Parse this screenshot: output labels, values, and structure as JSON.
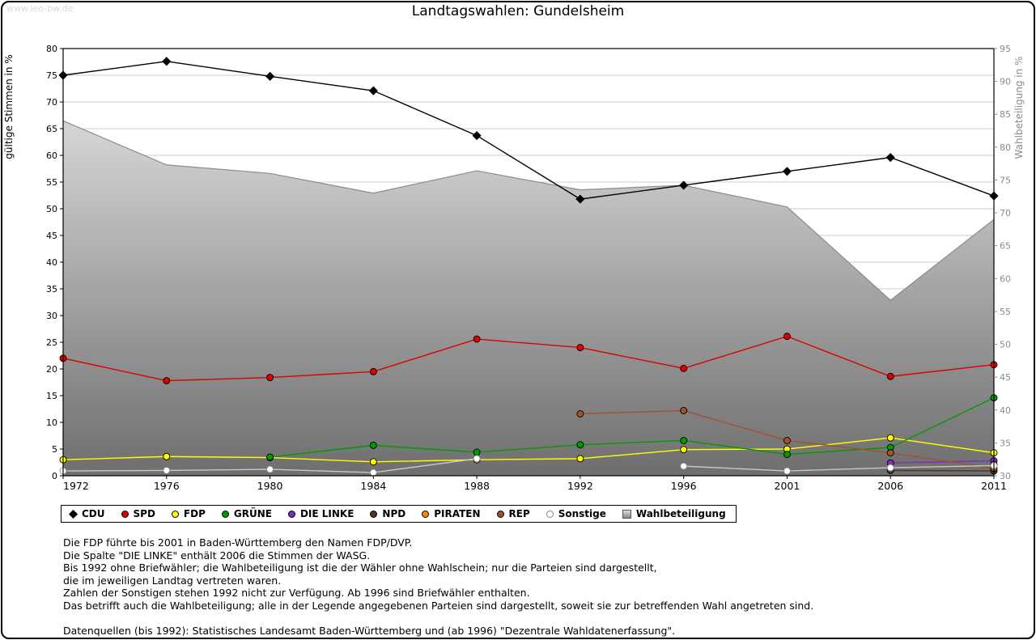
{
  "page": {
    "watermark": "www.leo-bw.de",
    "title": "Landtagswahlen: Gundelsheim"
  },
  "chart_data": {
    "type": "line",
    "title": "Landtagswahlen: Gundelsheim",
    "categories": [
      "1972",
      "1976",
      "1980",
      "1984",
      "1988",
      "1992",
      "1996",
      "2001",
      "2006",
      "2011"
    ],
    "left_axis": {
      "label": "gültige Stimmen in %",
      "min": 0,
      "max": 80,
      "step": 5
    },
    "right_axis": {
      "label": "Wahlbeteiligung in %",
      "min": 30,
      "max": 95,
      "step": 5
    },
    "grid": true,
    "legend_position": "bottom",
    "series": [
      {
        "name": "CDU",
        "color": "#000000",
        "marker": "diamond",
        "values": [
          75.0,
          77.6,
          74.8,
          72.1,
          63.7,
          51.8,
          54.4,
          57.0,
          59.6,
          52.4
        ]
      },
      {
        "name": "SPD",
        "color": "#dd0000",
        "marker": "circle",
        "values": [
          22.0,
          17.8,
          18.4,
          19.5,
          25.6,
          24.0,
          20.1,
          26.1,
          18.6,
          20.8
        ]
      },
      {
        "name": "FDP",
        "color": "#ffff00",
        "marker": "circle",
        "values": [
          3.0,
          3.6,
          3.4,
          2.6,
          3.0,
          3.2,
          4.9,
          5.0,
          7.1,
          4.3
        ]
      },
      {
        "name": "GRÜNE",
        "color": "#009900",
        "marker": "circle",
        "values": [
          null,
          null,
          3.5,
          5.7,
          4.4,
          5.8,
          6.6,
          4.0,
          5.3,
          14.6
        ]
      },
      {
        "name": "DIE LINKE",
        "color": "#7b2fbe",
        "marker": "circle",
        "values": [
          null,
          null,
          null,
          null,
          null,
          null,
          null,
          null,
          2.4,
          2.8
        ]
      },
      {
        "name": "NPD",
        "color": "#52361a",
        "marker": "circle",
        "values": [
          null,
          null,
          null,
          null,
          null,
          null,
          null,
          null,
          1.0,
          0.9
        ]
      },
      {
        "name": "PIRATEN",
        "color": "#ff8800",
        "marker": "circle",
        "values": [
          null,
          null,
          null,
          null,
          null,
          null,
          null,
          null,
          null,
          2.1
        ]
      },
      {
        "name": "REP",
        "color": "#a0522d",
        "marker": "circle",
        "values": [
          null,
          null,
          null,
          null,
          null,
          11.6,
          12.2,
          6.6,
          4.3,
          1.4
        ]
      },
      {
        "name": "Sonstige",
        "color": "#c8c8c8",
        "marker": "circle",
        "marker_fill": "#ffffff",
        "marker_stroke": "#888888",
        "values": [
          0.9,
          1.0,
          1.2,
          0.6,
          3.2,
          null,
          1.8,
          0.9,
          1.5,
          1.9
        ]
      }
    ],
    "turnout": {
      "name": "Wahlbeteiligung",
      "axis": "right",
      "style": "area",
      "fill_top": "#d6d6d6",
      "fill_bottom": "#6e6e6e",
      "edge_color": "#8c8c8c",
      "values": [
        84.0,
        77.3,
        76.0,
        73.0,
        76.4,
        73.5,
        74.2,
        70.9,
        56.7,
        69.0
      ]
    }
  },
  "footnotes": {
    "lines": [
      "Die FDP führte bis 2001 in Baden-Württemberg den Namen FDP/DVP.",
      "Die Spalte \"DIE LINKE\" enthält 2006 die Stimmen der WASG.",
      "Bis 1992 ohne Briefwähler; die Wahlbeteiligung ist die der Wähler ohne Wahlschein; nur die Parteien sind dargestellt,",
      "die im jeweiligen Landtag vertreten waren.",
      "Zahlen der Sonstigen stehen 1992 nicht zur Verfügung. Ab 1996 sind Briefwähler enthalten.",
      "Das betrifft auch die Wahlbeteiligung; alle in der Legende angegebenen Parteien sind dargestellt, soweit sie zur betreffenden Wahl angetreten sind.",
      "",
      "Datenquellen (bis 1992): Statistisches Landesamt Baden-Württemberg und (ab 1996) \"Dezentrale Wahldatenerfassung\"."
    ]
  }
}
